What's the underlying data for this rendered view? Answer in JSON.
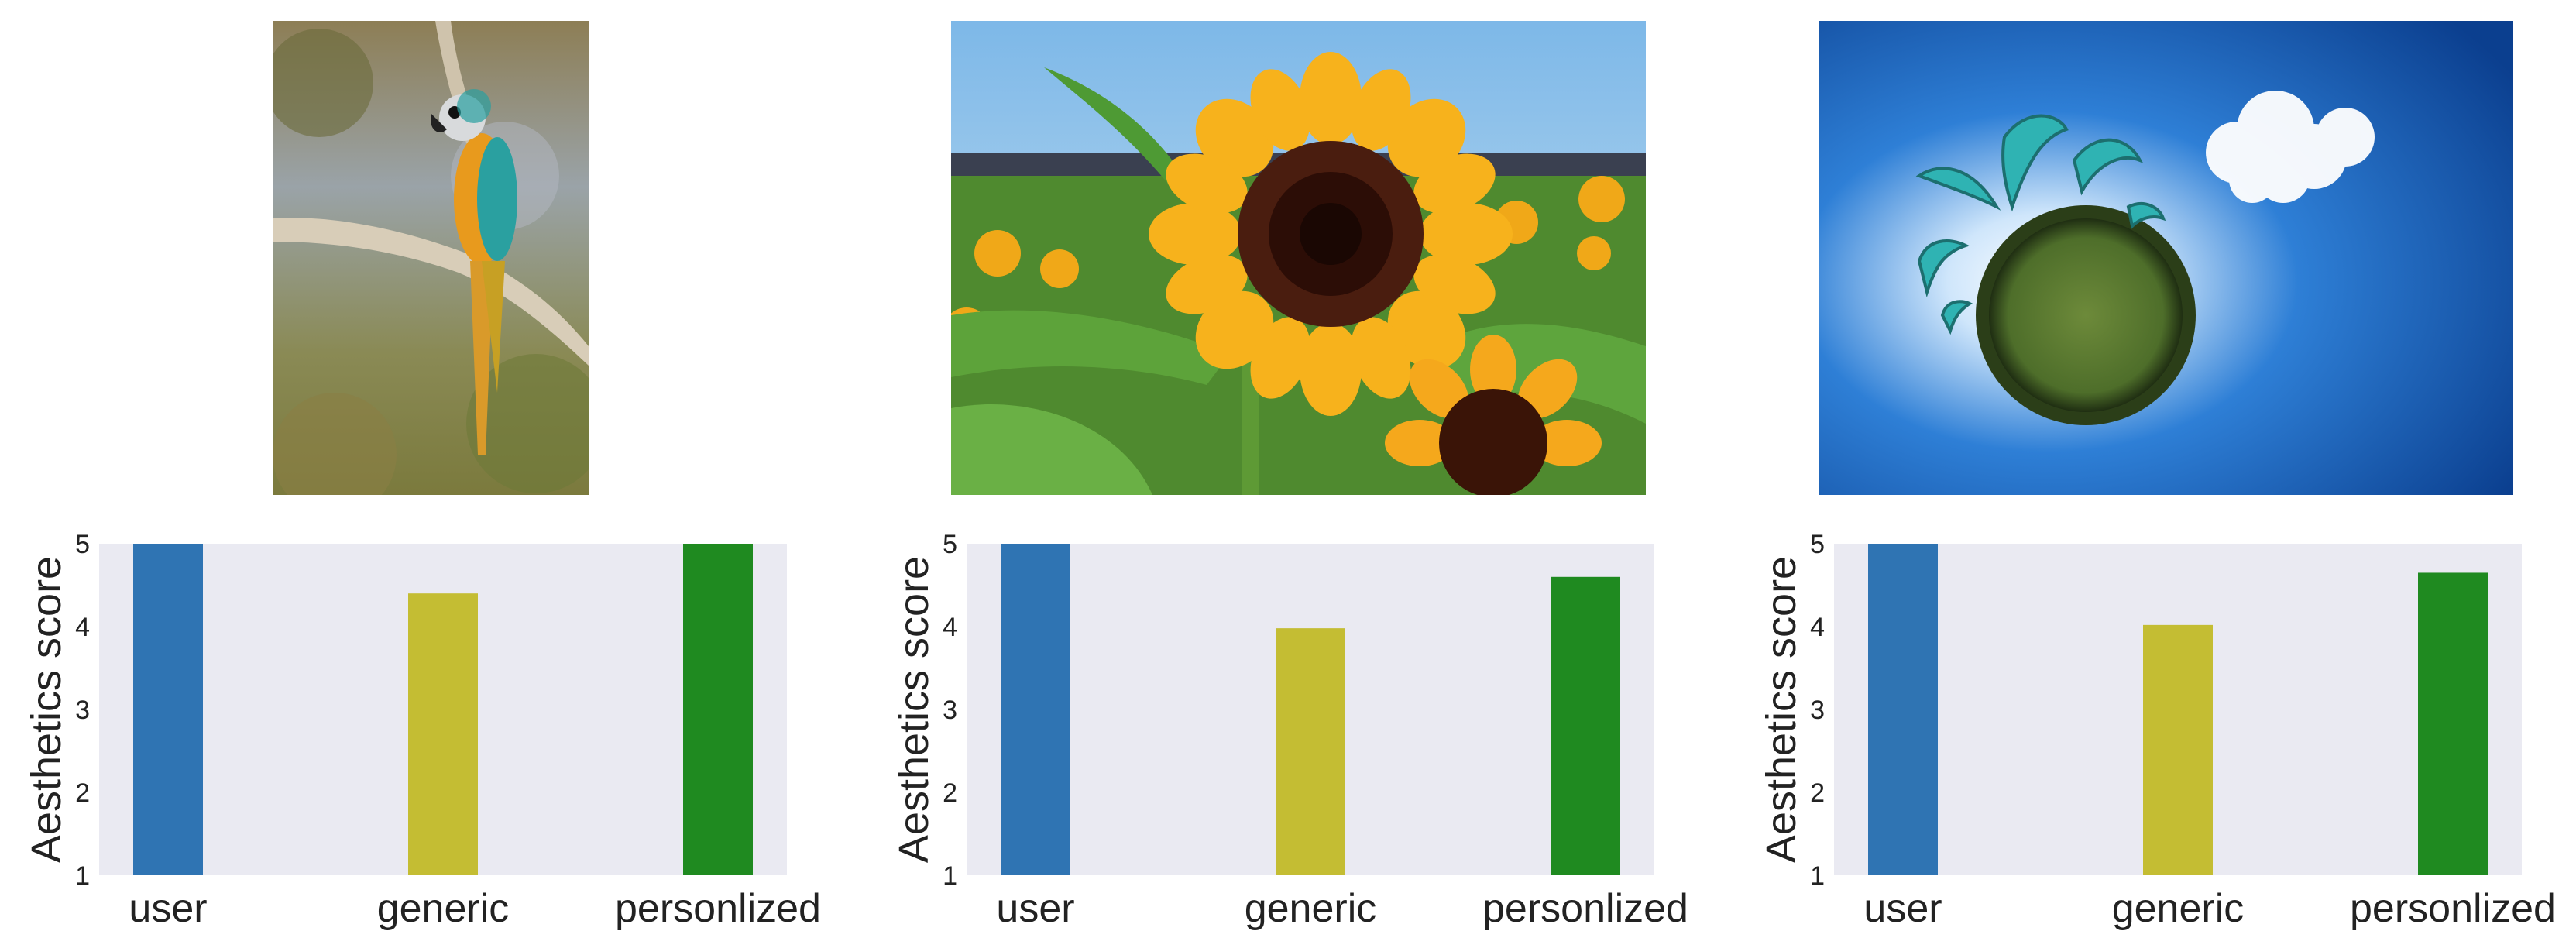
{
  "photos": [
    {
      "subject": "parrot-on-branch"
    },
    {
      "subject": "sunflower"
    },
    {
      "subject": "little-planet-with-kites"
    }
  ],
  "chart_data": [
    {
      "type": "bar",
      "categories": [
        "user",
        "generic",
        "personlized"
      ],
      "values": [
        5.0,
        4.4,
        5.0
      ],
      "ylabel": "Aesthetics score",
      "ylim": [
        1,
        5
      ],
      "yticks": [
        "1",
        "2",
        "3",
        "4",
        "5"
      ],
      "colors": [
        "#2f74b3",
        "#c4bd33",
        "#1f8a20"
      ],
      "background": "#eaeaf2",
      "grid": false
    },
    {
      "type": "bar",
      "categories": [
        "user",
        "generic",
        "personlized"
      ],
      "values": [
        5.0,
        3.98,
        4.6
      ],
      "ylabel": "Aesthetics score",
      "ylim": [
        1,
        5
      ],
      "yticks": [
        "1",
        "2",
        "3",
        "4",
        "5"
      ],
      "colors": [
        "#2f74b3",
        "#c4bd33",
        "#1f8a20"
      ],
      "background": "#eaeaf2",
      "grid": false
    },
    {
      "type": "bar",
      "categories": [
        "user",
        "generic",
        "personlized"
      ],
      "values": [
        5.0,
        4.02,
        4.65
      ],
      "ylabel": "Aesthetics score",
      "ylim": [
        1,
        5
      ],
      "yticks": [
        "1",
        "2",
        "3",
        "4",
        "5"
      ],
      "colors": [
        "#2f74b3",
        "#c4bd33",
        "#1f8a20"
      ],
      "background": "#eaeaf2",
      "grid": false
    }
  ]
}
